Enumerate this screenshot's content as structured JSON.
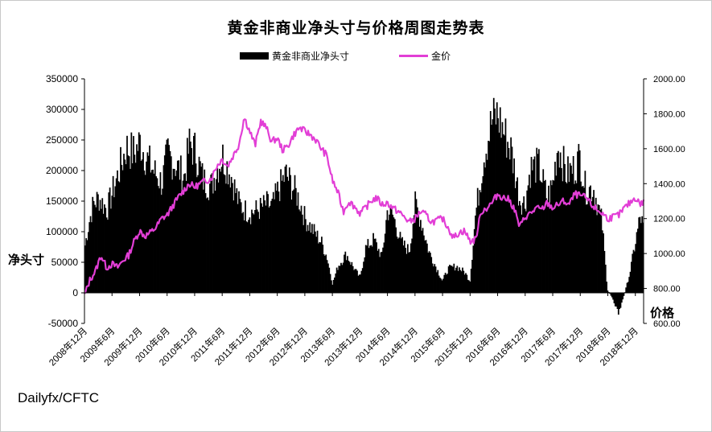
{
  "chart_data": {
    "type": "bar+line",
    "title": "黄金非商业净头寸与价格周图走势表",
    "source": "Dailyfx/CFTC",
    "ylabel_left": "净头寸",
    "ylabel_right": "价格",
    "legend_position": "top",
    "grid": false,
    "y_left": {
      "min": -50000,
      "max": 350000,
      "ticks": [
        "-50000",
        "0",
        "50000",
        "100000",
        "150000",
        "200000",
        "250000",
        "300000",
        "350000"
      ]
    },
    "y_right": {
      "min": 600,
      "max": 2000,
      "ticks": [
        "600.00",
        "800.00",
        "1000.00",
        "1200.00",
        "1400.00",
        "1600.00",
        "1800.00",
        "2000.00"
      ]
    },
    "x_ticks": [
      "2008年12月",
      "2009年6月",
      "2009年12月",
      "2010年6月",
      "2010年12月",
      "2011年6月",
      "2011年12月",
      "2012年6月",
      "2012年12月",
      "2013年6月",
      "2013年12月",
      "2014年6月",
      "2014年12月",
      "2015年6月",
      "2015年12月",
      "2016年6月",
      "2016年12月",
      "2017年6月",
      "2017年12月",
      "2018年6月",
      "2018年12月"
    ],
    "series": [
      {
        "name": "黄金非商业净头寸",
        "type": "bar",
        "color": "#000000",
        "points": [
          [
            0,
            80000
          ],
          [
            0.15,
            120000
          ],
          [
            0.3,
            150000
          ],
          [
            0.5,
            160000
          ],
          [
            0.8,
            140000
          ],
          [
            1.0,
            170000
          ],
          [
            1.2,
            200000
          ],
          [
            1.5,
            245000
          ],
          [
            1.8,
            235000
          ],
          [
            2.0,
            255000
          ],
          [
            2.2,
            230000
          ],
          [
            2.5,
            205000
          ],
          [
            2.8,
            185000
          ],
          [
            3.0,
            235000
          ],
          [
            3.3,
            215000
          ],
          [
            3.6,
            195000
          ],
          [
            3.8,
            250000
          ],
          [
            4.0,
            240000
          ],
          [
            4.3,
            190000
          ],
          [
            4.6,
            180000
          ],
          [
            4.8,
            210000
          ],
          [
            5.0,
            230000
          ],
          [
            5.3,
            200000
          ],
          [
            5.6,
            150000
          ],
          [
            5.8,
            140000
          ],
          [
            6.0,
            135000
          ],
          [
            6.3,
            140000
          ],
          [
            6.6,
            150000
          ],
          [
            6.8,
            145000
          ],
          [
            7.0,
            170000
          ],
          [
            7.3,
            200000
          ],
          [
            7.6,
            175000
          ],
          [
            7.8,
            155000
          ],
          [
            8.0,
            125000
          ],
          [
            8.3,
            105000
          ],
          [
            8.6,
            85000
          ],
          [
            8.8,
            60000
          ],
          [
            9.0,
            15000
          ],
          [
            9.2,
            45000
          ],
          [
            9.5,
            65000
          ],
          [
            9.8,
            40000
          ],
          [
            10.0,
            25000
          ],
          [
            10.2,
            75000
          ],
          [
            10.5,
            90000
          ],
          [
            10.8,
            60000
          ],
          [
            11.0,
            140000
          ],
          [
            11.2,
            130000
          ],
          [
            11.5,
            85000
          ],
          [
            11.8,
            70000
          ],
          [
            12.0,
            150000
          ],
          [
            12.2,
            125000
          ],
          [
            12.5,
            70000
          ],
          [
            12.8,
            40000
          ],
          [
            13.0,
            20000
          ],
          [
            13.2,
            40000
          ],
          [
            13.5,
            45000
          ],
          [
            13.8,
            35000
          ],
          [
            14.0,
            20000
          ],
          [
            14.2,
            130000
          ],
          [
            14.5,
            230000
          ],
          [
            14.8,
            290000
          ],
          [
            15.0,
            300000
          ],
          [
            15.2,
            275000
          ],
          [
            15.5,
            240000
          ],
          [
            15.8,
            160000
          ],
          [
            16.0,
            150000
          ],
          [
            16.2,
            210000
          ],
          [
            16.5,
            215000
          ],
          [
            16.8,
            160000
          ],
          [
            17.0,
            180000
          ],
          [
            17.2,
            250000
          ],
          [
            17.5,
            200000
          ],
          [
            17.8,
            210000
          ],
          [
            18.0,
            230000
          ],
          [
            18.2,
            175000
          ],
          [
            18.5,
            175000
          ],
          [
            18.8,
            120000
          ],
          [
            19.0,
            5000
          ],
          [
            19.2,
            -10000
          ],
          [
            19.4,
            -35000
          ],
          [
            19.6,
            -5000
          ],
          [
            19.8,
            30000
          ],
          [
            20.0,
            80000
          ],
          [
            20.2,
            130000
          ],
          [
            20.3,
            110000
          ]
        ]
      },
      {
        "name": "金价",
        "type": "line",
        "color": "#e23ed6",
        "points": [
          [
            0,
            760
          ],
          [
            0.2,
            850
          ],
          [
            0.4,
            900
          ],
          [
            0.6,
            990
          ],
          [
            0.8,
            920
          ],
          [
            1.0,
            940
          ],
          [
            1.2,
            920
          ],
          [
            1.4,
            960
          ],
          [
            1.6,
            990
          ],
          [
            1.8,
            1070
          ],
          [
            2.0,
            1130
          ],
          [
            2.2,
            1100
          ],
          [
            2.4,
            1120
          ],
          [
            2.6,
            1150
          ],
          [
            2.8,
            1200
          ],
          [
            3.0,
            1220
          ],
          [
            3.2,
            1270
          ],
          [
            3.4,
            1320
          ],
          [
            3.6,
            1360
          ],
          [
            3.8,
            1400
          ],
          [
            4.0,
            1380
          ],
          [
            4.3,
            1410
          ],
          [
            4.6,
            1430
          ],
          [
            4.8,
            1500
          ],
          [
            5.0,
            1540
          ],
          [
            5.2,
            1500
          ],
          [
            5.4,
            1560
          ],
          [
            5.6,
            1620
          ],
          [
            5.8,
            1780
          ],
          [
            6.0,
            1700
          ],
          [
            6.2,
            1620
          ],
          [
            6.4,
            1760
          ],
          [
            6.6,
            1720
          ],
          [
            6.8,
            1640
          ],
          [
            7.0,
            1660
          ],
          [
            7.2,
            1590
          ],
          [
            7.4,
            1620
          ],
          [
            7.6,
            1680
          ],
          [
            7.8,
            1720
          ],
          [
            8.0,
            1700
          ],
          [
            8.2,
            1680
          ],
          [
            8.4,
            1650
          ],
          [
            8.6,
            1600
          ],
          [
            8.8,
            1560
          ],
          [
            9.0,
            1420
          ],
          [
            9.2,
            1350
          ],
          [
            9.4,
            1240
          ],
          [
            9.6,
            1300
          ],
          [
            9.8,
            1270
          ],
          [
            10.0,
            1230
          ],
          [
            10.2,
            1260
          ],
          [
            10.4,
            1300
          ],
          [
            10.6,
            1320
          ],
          [
            10.8,
            1280
          ],
          [
            11.0,
            1290
          ],
          [
            11.2,
            1260
          ],
          [
            11.4,
            1240
          ],
          [
            11.6,
            1210
          ],
          [
            11.8,
            1180
          ],
          [
            12.0,
            1200
          ],
          [
            12.2,
            1240
          ],
          [
            12.4,
            1220
          ],
          [
            12.6,
            1180
          ],
          [
            12.8,
            1190
          ],
          [
            13.0,
            1200
          ],
          [
            13.2,
            1150
          ],
          [
            13.4,
            1090
          ],
          [
            13.6,
            1120
          ],
          [
            13.8,
            1130
          ],
          [
            14.0,
            1070
          ],
          [
            14.2,
            1080
          ],
          [
            14.4,
            1240
          ],
          [
            14.6,
            1260
          ],
          [
            14.8,
            1290
          ],
          [
            15.0,
            1340
          ],
          [
            15.2,
            1320
          ],
          [
            15.4,
            1310
          ],
          [
            15.6,
            1260
          ],
          [
            15.8,
            1150
          ],
          [
            16.0,
            1210
          ],
          [
            16.2,
            1230
          ],
          [
            16.4,
            1260
          ],
          [
            16.6,
            1250
          ],
          [
            16.8,
            1290
          ],
          [
            17.0,
            1260
          ],
          [
            17.2,
            1280
          ],
          [
            17.4,
            1300
          ],
          [
            17.6,
            1280
          ],
          [
            17.8,
            1340
          ],
          [
            18.0,
            1330
          ],
          [
            18.2,
            1320
          ],
          [
            18.4,
            1280
          ],
          [
            18.6,
            1250
          ],
          [
            18.8,
            1230
          ],
          [
            19.0,
            1200
          ],
          [
            19.2,
            1210
          ],
          [
            19.4,
            1220
          ],
          [
            19.6,
            1260
          ],
          [
            19.8,
            1290
          ],
          [
            20.0,
            1320
          ],
          [
            20.2,
            1280
          ],
          [
            20.3,
            1300
          ]
        ]
      }
    ]
  }
}
